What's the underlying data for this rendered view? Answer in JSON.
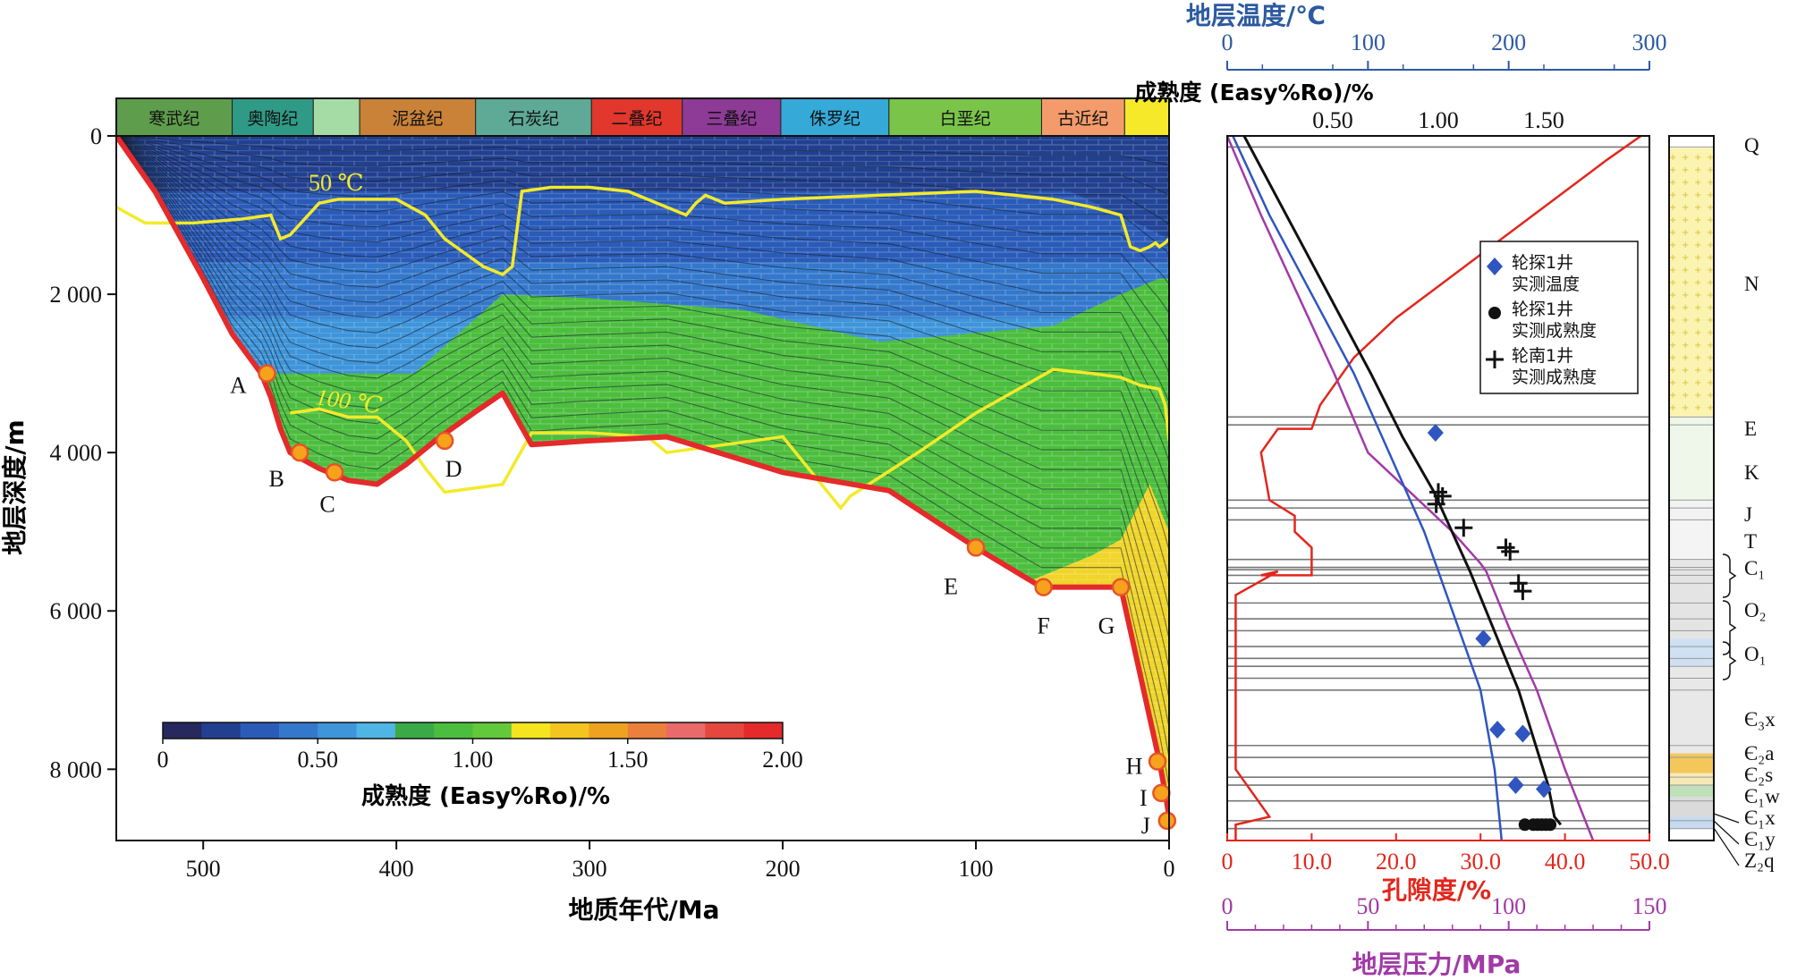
{
  "left_panel": {
    "xlabel": "地质年代/Ma",
    "ylabel": "地层深度/m",
    "x_ticks": [
      "500",
      "400",
      "300",
      "200",
      "100",
      "0"
    ],
    "y_ticks": [
      "0",
      "2 000",
      "4 000",
      "6 000",
      "8 000"
    ],
    "periods": [
      {
        "name": "寒武纪",
        "color": "#5e9d4c"
      },
      {
        "name": "奥陶纪",
        "color": "#2f9a86"
      },
      {
        "name": "",
        "color": "#a5dba4"
      },
      {
        "name": "泥盆纪",
        "color": "#c98238"
      },
      {
        "name": "石炭纪",
        "color": "#5faa96"
      },
      {
        "name": "二叠纪",
        "color": "#e2372c"
      },
      {
        "name": "三叠纪",
        "color": "#8d3b97"
      },
      {
        "name": "侏罗纪",
        "color": "#35a9d8"
      },
      {
        "name": "白垩纪",
        "color": "#7ac549"
      },
      {
        "name": "古近纪",
        "color": "#f39b6a"
      },
      {
        "name": "",
        "color": "#f5e92a"
      }
    ],
    "isotherm_labels": [
      "50 ℃",
      "100 ℃"
    ],
    "points": [
      "A",
      "B",
      "C",
      "D",
      "E",
      "F",
      "G",
      "H",
      "I",
      "J"
    ],
    "colorbar": {
      "label": "成熟度 (Easy%Ro)/%",
      "ticks": [
        "0",
        "0.50",
        "1.00",
        "1.50",
        "2.00"
      ],
      "colors": [
        "#26285e",
        "#22408f",
        "#2a5bb8",
        "#3478cc",
        "#3e95da",
        "#4fb5e4",
        "#3aaa46",
        "#4cbe3e",
        "#62c93a",
        "#f5e41e",
        "#f3c51e",
        "#efa21f",
        "#eb7f3c",
        "#e96a6a",
        "#e5473e",
        "#e42a2a"
      ]
    }
  },
  "right_panel": {
    "temp_axis": {
      "label": "地层温度/℃",
      "ticks": [
        "0",
        "100",
        "200",
        "300"
      ],
      "color": "#2c5aa0"
    },
    "maturity_axis": {
      "label": "成熟度 (Easy%Ro)/%",
      "ticks": [
        "0.50",
        "1.00",
        "1.50"
      ]
    },
    "porosity_axis": {
      "label": "孔隙度/%",
      "ticks": [
        "0",
        "10.0",
        "20.0",
        "30.0",
        "40.0",
        "50.0"
      ],
      "color": "#e3261c"
    },
    "pressure_axis": {
      "label": "地层压力/MPa",
      "ticks": [
        "0",
        "50",
        "100",
        "150"
      ],
      "color": "#a13aa6"
    },
    "legend": [
      {
        "symbol": "diamond",
        "line1": "轮探1井",
        "line2": "实测温度",
        "color": "#2f55c0"
      },
      {
        "symbol": "dot",
        "line1": "轮探1井",
        "line2": "实测成熟度",
        "color": "#111111"
      },
      {
        "symbol": "plus",
        "line1": "轮南1井",
        "line2": "实测成熟度",
        "color": "#111111"
      }
    ],
    "strata": [
      "Q",
      "N",
      "E",
      "K",
      "J",
      "T",
      "C₁",
      "O₂",
      "O₁",
      "Є₃x",
      "Є₂a",
      "Є₂s",
      "Є₁w",
      "Є₁x",
      "Є₁y",
      "Z₂q"
    ]
  },
  "chart_data": [
    {
      "type": "area",
      "title": "",
      "xlabel": "地质年代/Ma",
      "ylabel": "地层深度/m",
      "xlim": [
        545,
        0
      ],
      "ylim": [
        0,
        8900
      ],
      "series": [
        {
          "name": "",
          "x": [
            545,
            525,
            500,
            485,
            470,
            465,
            460,
            455,
            440,
            425,
            410,
            395,
            380,
            360,
            345,
            330,
            300,
            260,
            200,
            145,
            100,
            66,
            45,
            25,
            5,
            2,
            0
          ],
          "y": [
            0,
            700,
            1800,
            2500,
            3000,
            3300,
            3700,
            4000,
            4200,
            4350,
            4400,
            4150,
            3850,
            3500,
            3250,
            3900,
            3850,
            3800,
            4250,
            4480,
            5200,
            5700,
            5700,
            5700,
            7900,
            8300,
            8600
          ]
        },
        {
          "name": "50 ℃",
          "x": [
            545,
            530,
            520,
            505,
            480,
            465,
            460,
            455,
            440,
            430,
            420,
            400,
            385,
            375,
            355,
            345,
            340,
            335,
            320,
            300,
            280,
            250,
            245,
            240,
            230,
            200,
            100,
            60,
            40,
            25,
            20,
            15,
            10,
            7,
            5,
            2,
            0
          ],
          "y": [
            900,
            1100,
            1100,
            1100,
            1050,
            1000,
            1300,
            1250,
            850,
            800,
            800,
            800,
            1000,
            1300,
            1650,
            1750,
            1650,
            700,
            650,
            650,
            700,
            1000,
            850,
            750,
            850,
            800,
            700,
            800,
            900,
            1000,
            1400,
            1450,
            1400,
            1350,
            1400,
            1350,
            1300
          ]
        },
        {
          "name": "100 ℃",
          "x": [
            455,
            440,
            425,
            420,
            410,
            395,
            385,
            375,
            345,
            330,
            300,
            270,
            260,
            200,
            170,
            165,
            130,
            100,
            60,
            40,
            25,
            15,
            5,
            2,
            0
          ],
          "y": [
            3500,
            3450,
            3550,
            3550,
            3550,
            3850,
            4200,
            4500,
            4400,
            3750,
            3750,
            3800,
            4000,
            3800,
            4700,
            4550,
            4000,
            3500,
            2950,
            3000,
            3050,
            3150,
            3200,
            3400,
            3850
          ]
        }
      ],
      "points": [
        {
          "label": "A",
          "x": 467,
          "y": 3000
        },
        {
          "label": "B",
          "x": 450,
          "y": 4000
        },
        {
          "label": "C",
          "x": 432,
          "y": 4250
        },
        {
          "label": "D",
          "x": 375,
          "y": 3850
        },
        {
          "label": "E",
          "x": 100,
          "y": 5200
        },
        {
          "label": "F",
          "x": 65,
          "y": 5700
        },
        {
          "label": "G",
          "x": 25,
          "y": 5700
        },
        {
          "label": "H",
          "x": 6,
          "y": 7900
        },
        {
          "label": "I",
          "x": 4,
          "y": 8300
        },
        {
          "label": "J",
          "x": 1,
          "y": 8650
        }
      ]
    },
    {
      "type": "line",
      "title": "",
      "ylabel": "地层深度/m",
      "ylim": [
        0,
        8900
      ],
      "series": [
        {
          "name": "地层温度/℃",
          "axis": "temperature",
          "xlim": [
            0,
            300
          ],
          "x": [
            4,
            30,
            60,
            90,
            115,
            140,
            160,
            180,
            190,
            195
          ],
          "y": [
            0,
            1000,
            2000,
            3000,
            4000,
            5000,
            6000,
            7000,
            8000,
            8900
          ]
        },
        {
          "name": "成熟度 (Easy%Ro)/%",
          "axis": "maturity",
          "xlim": [
            0,
            2.0
          ],
          "x": [
            0.08,
            0.28,
            0.48,
            0.68,
            0.83,
            0.98,
            1.15,
            1.38,
            1.52,
            1.55,
            1.58
          ],
          "y": [
            0,
            1000,
            2000,
            3000,
            3800,
            4500,
            5500,
            7000,
            8200,
            8600,
            8700
          ]
        },
        {
          "name": "孔隙度/%",
          "axis": "porosity",
          "xlim": [
            0,
            50
          ],
          "x": [
            49,
            45,
            40,
            35,
            30,
            25,
            20,
            15,
            11,
            10,
            6,
            4,
            5,
            8,
            8,
            10,
            10,
            4,
            6,
            1,
            1,
            1,
            5,
            1,
            1
          ],
          "y": [
            0,
            300,
            700,
            1100,
            1500,
            1900,
            2300,
            2800,
            3400,
            3700,
            3700,
            4000,
            4600,
            4800,
            5000,
            5200,
            5550,
            5550,
            5500,
            5800,
            6500,
            8000,
            8600,
            8700,
            8900
          ]
        },
        {
          "name": "地层压力/MPa",
          "axis": "pressure",
          "xlim": [
            0,
            150
          ],
          "x": [
            0,
            12,
            25,
            38,
            50,
            65,
            80,
            90,
            92,
            100,
            110,
            120,
            130
          ],
          "y": [
            0,
            1000,
            2000,
            3000,
            4000,
            4500,
            5000,
            5400,
            5500,
            6200,
            7000,
            8000,
            8900
          ]
        }
      ],
      "measured_temperature": [
        {
          "x": 148,
          "y": 3750
        },
        {
          "x": 182,
          "y": 6350
        },
        {
          "x": 192,
          "y": 7500
        },
        {
          "x": 210,
          "y": 7550
        },
        {
          "x": 205,
          "y": 8200
        },
        {
          "x": 225,
          "y": 8250
        }
      ],
      "measured_maturity_luntan1": [
        {
          "x": 1.41,
          "y": 8700
        },
        {
          "x": 1.45,
          "y": 8700
        },
        {
          "x": 1.47,
          "y": 8700
        },
        {
          "x": 1.49,
          "y": 8700
        },
        {
          "x": 1.51,
          "y": 8700
        },
        {
          "x": 1.53,
          "y": 8700
        }
      ],
      "measured_maturity_lunnan1": [
        {
          "x": 1.0,
          "y": 4500
        },
        {
          "x": 1.02,
          "y": 4550
        },
        {
          "x": 0.99,
          "y": 4650
        },
        {
          "x": 1.12,
          "y": 4950
        },
        {
          "x": 1.32,
          "y": 5200
        },
        {
          "x": 1.34,
          "y": 5250
        },
        {
          "x": 1.38,
          "y": 5650
        },
        {
          "x": 1.4,
          "y": 5750
        }
      ]
    }
  ]
}
